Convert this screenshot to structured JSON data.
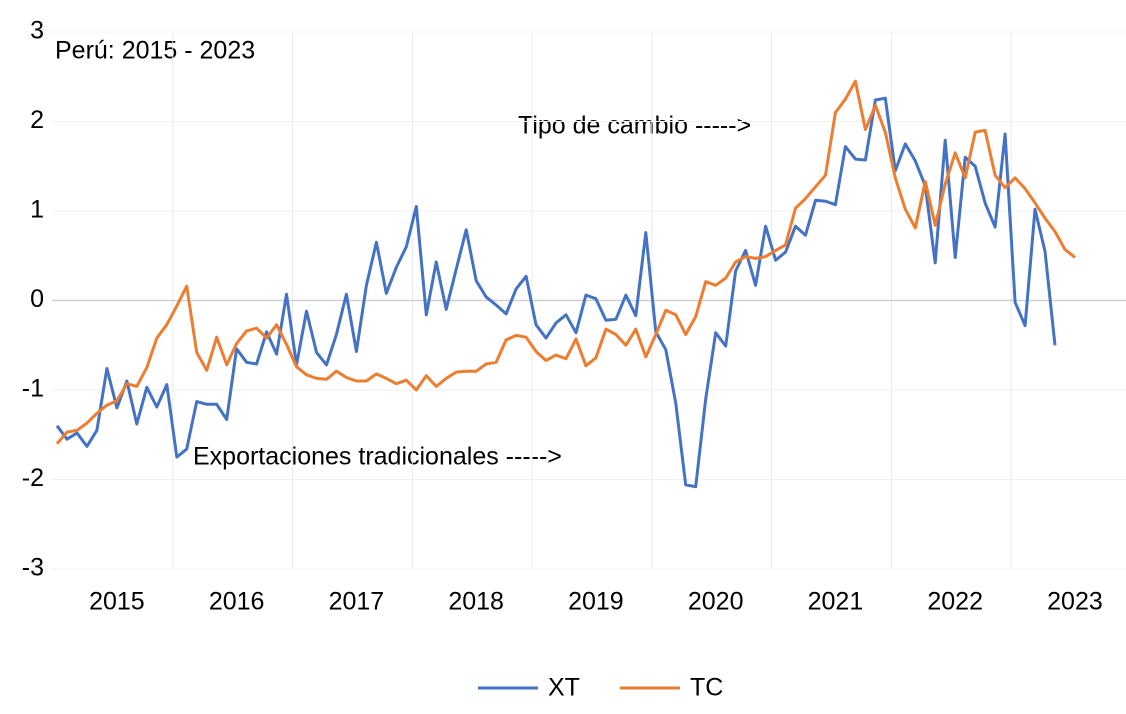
{
  "chart_data": {
    "type": "line",
    "annotations": [
      "Perú: 2015 - 2023",
      "Tipo de cambio ----->",
      "Exportaciones tradicionales ----->"
    ],
    "categories": [
      null,
      null,
      null,
      null,
      null,
      null,
      "2015",
      null,
      null,
      null,
      null,
      null,
      null,
      null,
      null,
      null,
      null,
      null,
      "2016",
      null,
      null,
      null,
      null,
      null,
      null,
      null,
      null,
      null,
      null,
      null,
      "2017",
      null,
      null,
      null,
      null,
      null,
      null,
      null,
      null,
      null,
      null,
      null,
      "2018",
      null,
      null,
      null,
      null,
      null,
      null,
      null,
      null,
      null,
      null,
      null,
      "2019",
      null,
      null,
      null,
      null,
      null,
      null,
      null,
      null,
      null,
      null,
      null,
      "2020",
      null,
      null,
      null,
      null,
      null,
      null,
      null,
      null,
      null,
      null,
      null,
      "2021",
      null,
      null,
      null,
      null,
      null,
      null,
      null,
      null,
      null,
      null,
      null,
      "2022",
      null,
      null,
      null,
      null,
      null,
      null,
      null,
      null,
      null,
      null,
      null,
      "2023"
    ],
    "series": [
      {
        "name": "XT",
        "color": "#4472c4",
        "values": [
          -1.4,
          -1.55,
          -1.48,
          -1.63,
          -1.45,
          -0.76,
          -1.2,
          -0.9,
          -1.38,
          -0.97,
          -1.19,
          -0.94,
          -1.75,
          -1.66,
          -1.13,
          -1.16,
          -1.16,
          -1.33,
          -0.54,
          -0.69,
          -0.71,
          -0.35,
          -0.6,
          0.07,
          -0.72,
          -0.12,
          -0.58,
          -0.72,
          -0.38,
          0.07,
          -0.57,
          0.17,
          0.65,
          0.08,
          0.37,
          0.6,
          1.05,
          -0.16,
          0.43,
          -0.1,
          0.35,
          0.79,
          0.22,
          0.04,
          -0.05,
          -0.15,
          0.13,
          0.27,
          -0.27,
          -0.42,
          -0.25,
          -0.16,
          -0.36,
          0.06,
          0.02,
          -0.22,
          -0.21,
          0.06,
          -0.17,
          0.76,
          -0.35,
          -0.55,
          -1.15,
          -2.06,
          -2.08,
          -1.1,
          -0.36,
          -0.51,
          0.33,
          0.56,
          0.17,
          0.83,
          0.45,
          0.54,
          0.83,
          0.73,
          1.12,
          1.11,
          1.07,
          1.72,
          1.58,
          1.57,
          2.24,
          2.26,
          1.45,
          1.75,
          1.56,
          1.28,
          0.42,
          1.79,
          0.48,
          1.6,
          1.5,
          1.09,
          0.82,
          1.86,
          -0.02,
          -0.28,
          1.02,
          0.55,
          -0.5,
          null,
          null
        ]
      },
      {
        "name": "TC",
        "color": "#ed7d31",
        "values": [
          -1.6,
          -1.47,
          -1.45,
          -1.37,
          -1.26,
          -1.17,
          -1.12,
          -0.93,
          -0.96,
          -0.75,
          -0.42,
          -0.27,
          -0.06,
          0.16,
          -0.58,
          -0.78,
          -0.41,
          -0.72,
          -0.48,
          -0.34,
          -0.31,
          -0.42,
          -0.27,
          -0.49,
          -0.74,
          -0.83,
          -0.87,
          -0.88,
          -0.79,
          -0.86,
          -0.9,
          -0.9,
          -0.82,
          -0.87,
          -0.93,
          -0.89,
          -1.0,
          -0.84,
          -0.96,
          -0.87,
          -0.8,
          -0.79,
          -0.79,
          -0.71,
          -0.69,
          -0.44,
          -0.39,
          -0.41,
          -0.57,
          -0.67,
          -0.61,
          -0.65,
          -0.43,
          -0.73,
          -0.64,
          -0.32,
          -0.38,
          -0.5,
          -0.32,
          -0.63,
          -0.38,
          -0.11,
          -0.16,
          -0.38,
          -0.18,
          0.21,
          0.17,
          0.25,
          0.43,
          0.49,
          0.47,
          0.49,
          0.56,
          0.62,
          1.03,
          1.14,
          1.27,
          1.4,
          2.1,
          2.25,
          2.45,
          1.91,
          2.18,
          1.88,
          1.37,
          1.02,
          0.81,
          1.33,
          0.84,
          1.3,
          1.65,
          1.37,
          1.88,
          1.9,
          1.4,
          1.26,
          1.37,
          1.25,
          1.09,
          0.92,
          0.77,
          0.57,
          0.48
        ]
      }
    ],
    "ylim": [
      -3,
      3
    ],
    "yticks": [
      -3,
      -2,
      -1,
      0,
      1,
      2,
      3
    ],
    "grid": true,
    "legend": "bottom"
  }
}
